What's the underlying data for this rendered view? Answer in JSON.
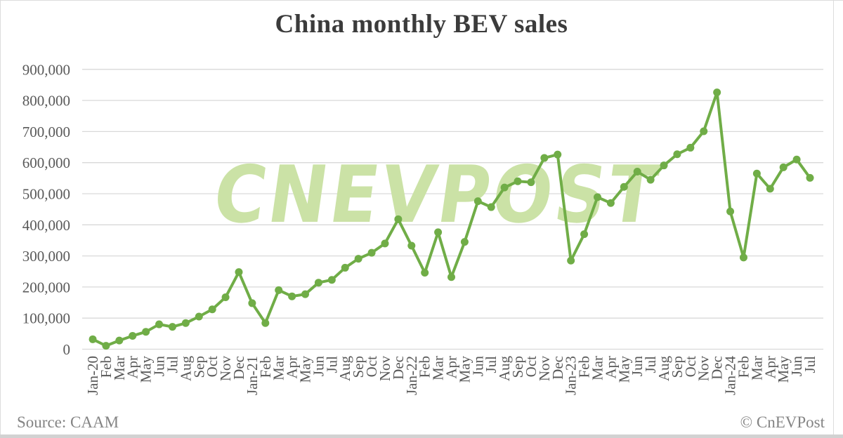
{
  "page": {
    "title": "China monthly BEV sales",
    "watermark": "CNEVPOST",
    "footer": {
      "source": "Source: CAAM",
      "credit": "© CnEVPost"
    }
  },
  "chart_data": {
    "type": "line",
    "title": "China monthly BEV sales",
    "series_name": "China monthly BEV sales (units)",
    "x": [
      "Jan-20",
      "Feb",
      "Mar",
      "Apr",
      "May",
      "Jun",
      "Jul",
      "Aug",
      "Sep",
      "Oct",
      "Nov",
      "Dec",
      "Jan-21",
      "Feb",
      "Mar",
      "Apr",
      "May",
      "Jun",
      "Jul",
      "Aug",
      "Sep",
      "Oct",
      "Nov",
      "Dec",
      "Jan-22",
      "Feb",
      "Mar",
      "Apr",
      "May",
      "Jun",
      "Jul",
      "Aug",
      "Sep",
      "Oct",
      "Nov",
      "Dec",
      "Jan-23",
      "Feb",
      "Mar",
      "Apr",
      "May",
      "Jun",
      "Jul",
      "Aug",
      "Sep",
      "Oct",
      "Nov",
      "Dec",
      "Jan-24",
      "Feb",
      "Mar",
      "Apr",
      "May",
      "Jun",
      "Jul"
    ],
    "values": [
      32000,
      11000,
      28000,
      43000,
      56000,
      80000,
      72000,
      84000,
      105000,
      128000,
      167000,
      248000,
      148000,
      84000,
      190000,
      170000,
      177000,
      214000,
      223000,
      262000,
      291000,
      310000,
      340000,
      418000,
      333000,
      246000,
      376000,
      232000,
      345000,
      476000,
      457000,
      520000,
      540000,
      537000,
      615000,
      626000,
      285000,
      370000,
      489000,
      470000,
      522000,
      571000,
      545000,
      591000,
      627000,
      648000,
      701000,
      826000,
      443000,
      295000,
      565000,
      516000,
      585000,
      610000,
      551000
    ],
    "ylim": [
      0,
      900000
    ],
    "y_tick_step": 100000,
    "grid": true,
    "legend": "none",
    "line_color": "#70ad47",
    "grid_color": "#d9d9d9",
    "axis_text_color": "#595959",
    "watermark_text": "CNEVPOST",
    "watermark_color": "#cbe2a6",
    "source": "CAAM"
  }
}
